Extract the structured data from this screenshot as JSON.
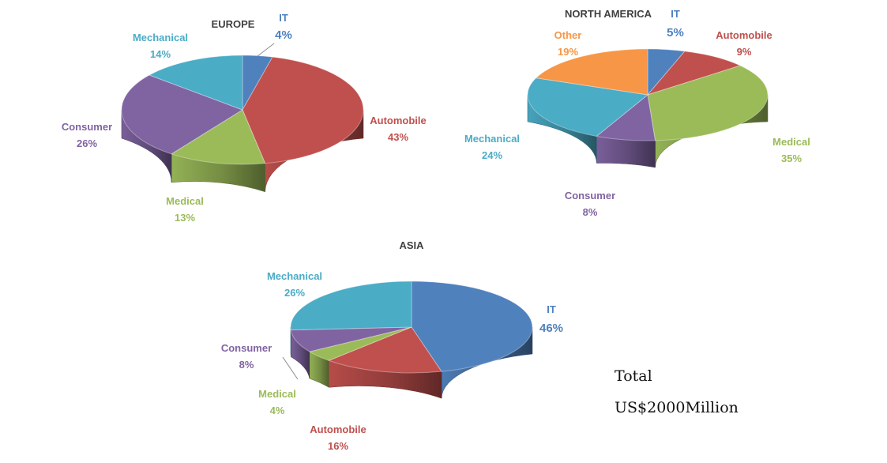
{
  "colors": {
    "IT": "#4F81BD",
    "Automobile": "#C0504D",
    "Medical": "#9BBB59",
    "Consumer": "#8064A2",
    "Mechanical": "#4BACC6",
    "Other": "#F79646",
    "title": "#404040"
  },
  "total": {
    "label": "Total",
    "value": "US$2000Million"
  },
  "chart_data": [
    {
      "type": "pie",
      "title": "EUROPE",
      "slices": [
        {
          "name": "IT",
          "value": 4,
          "label": "4%"
        },
        {
          "name": "Automobile",
          "value": 43,
          "label": "43%"
        },
        {
          "name": "Medical",
          "value": 13,
          "label": "13%"
        },
        {
          "name": "Consumer",
          "value": 26,
          "label": "26%"
        },
        {
          "name": "Mechanical",
          "value": 14,
          "label": "14%"
        }
      ]
    },
    {
      "type": "pie",
      "title": "NORTH AMERICA",
      "slices": [
        {
          "name": "IT",
          "value": 5,
          "label": "5%"
        },
        {
          "name": "Automobile",
          "value": 9,
          "label": "9%"
        },
        {
          "name": "Medical",
          "value": 35,
          "label": "35%"
        },
        {
          "name": "Consumer",
          "value": 8,
          "label": "8%"
        },
        {
          "name": "Mechanical",
          "value": 24,
          "label": "24%"
        },
        {
          "name": "Other",
          "value": 19,
          "label": "19%"
        }
      ]
    },
    {
      "type": "pie",
      "title": "ASIA",
      "slices": [
        {
          "name": "IT",
          "value": 46,
          "label": "46%"
        },
        {
          "name": "Automobile",
          "value": 16,
          "label": "16%"
        },
        {
          "name": "Medical",
          "value": 4,
          "label": "4%"
        },
        {
          "name": "Consumer",
          "value": 8,
          "label": "8%"
        },
        {
          "name": "Mechanical",
          "value": 26,
          "label": "26%"
        }
      ]
    }
  ]
}
